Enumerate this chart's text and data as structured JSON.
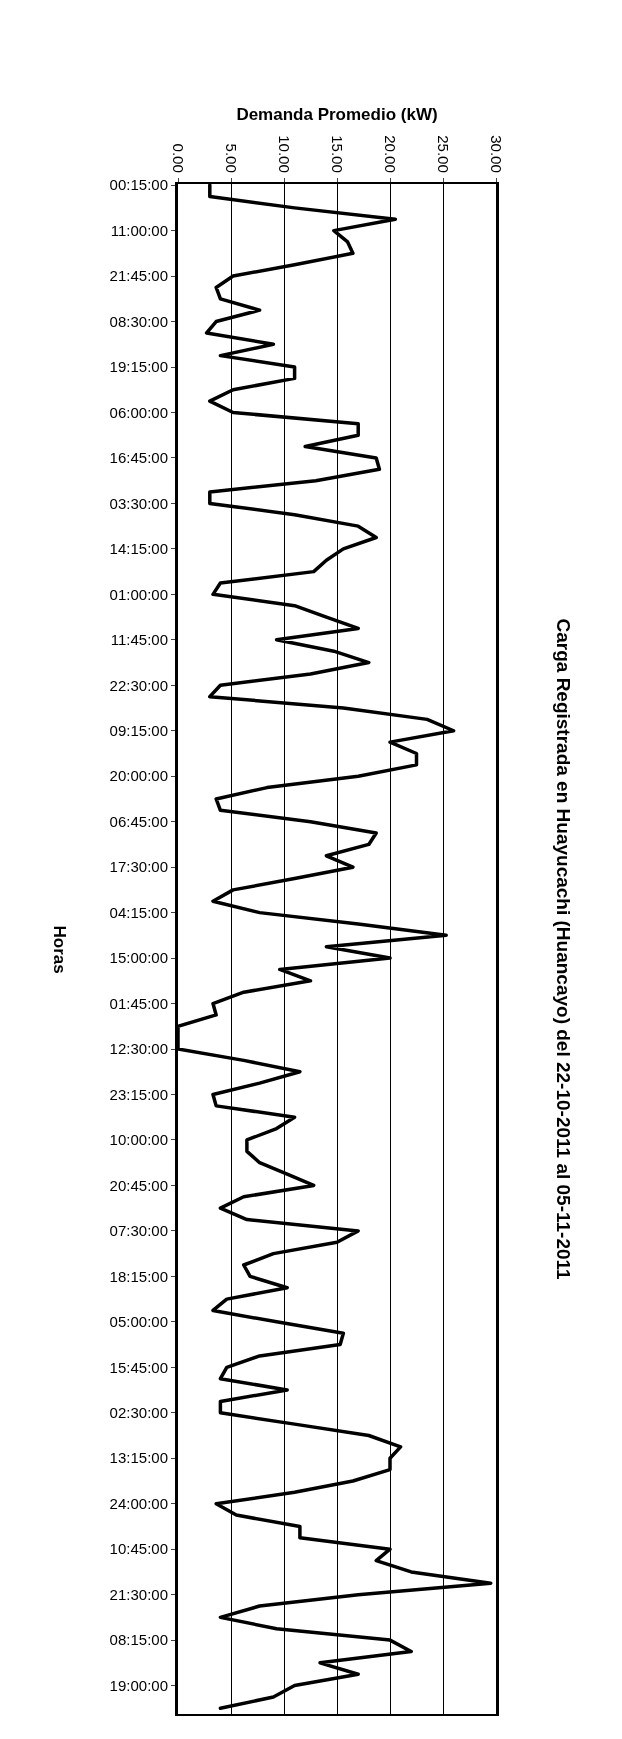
{
  "chart_data": {
    "type": "line",
    "title": "Carga Registrada en Huayucachi (Huancayo) del 22-10-2011 al 05-11-2011",
    "xlabel": "Demanda Promedio (kW)",
    "ylabel": "Horas",
    "orientation": "horizontal",
    "categories": [
      "00:15:00",
      null,
      null,
      null,
      "11:00:00",
      null,
      null,
      null,
      "21:45:00",
      null,
      null,
      null,
      "08:30:00",
      null,
      null,
      null,
      "19:15:00",
      null,
      null,
      null,
      "06:00:00",
      null,
      null,
      null,
      "16:45:00",
      null,
      null,
      null,
      "03:30:00",
      null,
      null,
      null,
      "14:15:00",
      null,
      null,
      null,
      "01:00:00",
      null,
      null,
      null,
      "11:45:00",
      null,
      null,
      null,
      "22:30:00",
      null,
      null,
      null,
      "09:15:00",
      null,
      null,
      null,
      "20:00:00",
      null,
      null,
      null,
      "06:45:00",
      null,
      null,
      null,
      "17:30:00",
      null,
      null,
      null,
      "04:15:00",
      null,
      null,
      null,
      "15:00:00",
      null,
      null,
      null,
      "01:45:00",
      null,
      null,
      null,
      "12:30:00",
      null,
      null,
      null,
      "23:15:00",
      null,
      null,
      null,
      "10:00:00",
      null,
      null,
      null,
      "20:45:00",
      null,
      null,
      null,
      "07:30:00",
      null,
      null,
      null,
      "18:15:00",
      null,
      null,
      null,
      "05:00:00",
      null,
      null,
      null,
      "15:45:00",
      null,
      null,
      null,
      "02:30:00",
      null,
      null,
      null,
      "13:15:00",
      null,
      null,
      null,
      "24:00:00",
      null,
      null,
      null,
      "10:45:00",
      null,
      null,
      null,
      "21:30:00",
      null,
      null,
      null,
      "08:15:00",
      null,
      null,
      null,
      "19:00:00",
      null,
      null
    ],
    "series": [
      {
        "color": "#000000",
        "values": [
          3.0,
          3.0,
          11,
          20.5,
          14.7,
          16,
          16.5,
          11,
          5.2,
          3.6,
          4,
          7.7,
          3.6,
          2.7,
          9,
          4,
          11,
          11,
          5.2,
          3,
          5.2,
          17,
          17,
          12,
          18.7,
          19,
          13,
          3,
          3,
          11,
          17,
          18.7,
          15.6,
          14,
          12.8,
          4,
          3.3,
          11,
          14,
          17,
          9.3,
          14.7,
          18,
          12.5,
          4,
          3,
          15.6,
          23.5,
          26,
          20,
          22.5,
          22.5,
          17,
          8.4,
          3.6,
          4,
          12.5,
          18.7,
          18,
          14,
          16.5,
          11,
          5.2,
          3.3,
          7.7,
          17,
          25.3,
          14,
          20,
          9.6,
          12.5,
          6.2,
          3.3,
          3.6,
          0,
          0,
          0,
          6.2,
          11.5,
          7.7,
          3.3,
          3.6,
          11,
          9.3,
          6.5,
          6.5,
          7.7,
          10.3,
          12.8,
          6.2,
          4,
          6.5,
          17,
          15,
          9,
          6.2,
          6.8,
          10.3,
          4.6,
          3.3,
          9.3,
          15.6,
          15.3,
          7.7,
          4.6,
          4,
          10.3,
          4,
          4,
          11,
          18,
          21,
          20,
          20,
          16.5,
          11,
          3.6,
          5.5,
          11.5,
          11.5,
          20,
          18.7,
          22,
          29.5,
          17,
          7.7,
          4,
          9.3,
          20,
          22,
          13.4,
          17,
          11,
          9,
          4
        ]
      }
    ],
    "xlim": [
      0,
      30
    ],
    "xticks": [
      {
        "value": 0,
        "label": "0.00"
      },
      {
        "value": 5,
        "label": "5.00"
      },
      {
        "value": 10,
        "label": "10.00"
      },
      {
        "value": 15,
        "label": "15.00"
      },
      {
        "value": 20,
        "label": "20.00"
      },
      {
        "value": 25,
        "label": "25.00"
      },
      {
        "value": 30,
        "label": "30.00"
      }
    ],
    "grid": "x",
    "marker": "none",
    "line_style": "solid"
  }
}
